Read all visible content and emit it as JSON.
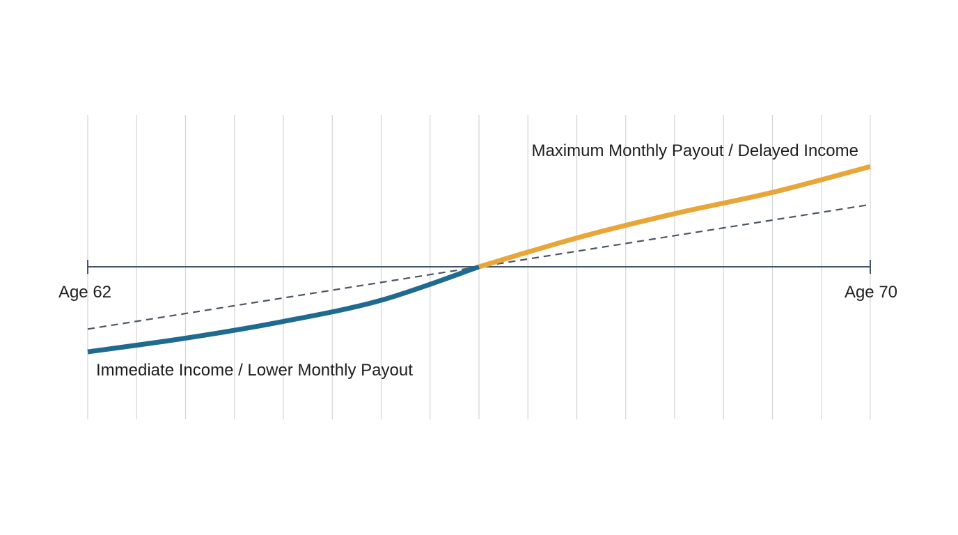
{
  "chart_data": {
    "type": "line",
    "title": "",
    "xlabel": "",
    "ylabel": "",
    "x_range": [
      62,
      70
    ],
    "tick_labels": {
      "start": "Age 62",
      "end": "Age 70"
    },
    "grid": "vertical",
    "baseline_y": 0,
    "ylim": [
      -1,
      1
    ],
    "series": [
      {
        "color": "#1f6a8f",
        "x": [
          62,
          63,
          64,
          65,
          66
        ],
        "y": [
          -0.56,
          -0.47,
          -0.36,
          -0.22,
          0
        ]
      },
      {
        "color": "#e8a63a",
        "x": [
          66,
          67,
          68,
          69,
          70
        ],
        "y": [
          0,
          0.19,
          0.35,
          0.49,
          0.66
        ]
      },
      {
        "style": "dashed",
        "color": "#4b5561",
        "x": [
          62,
          70
        ],
        "y": [
          -0.41,
          0.41
        ]
      }
    ],
    "annotations": [
      {
        "text": "Maximum Monthly Payout / Delayed Income",
        "position": "top-right",
        "series_color": "#e8a63a"
      },
      {
        "text": "Immediate Income / Lower Monthly Payout",
        "position": "bottom-left",
        "series_color": "#1f6a8f"
      }
    ]
  }
}
